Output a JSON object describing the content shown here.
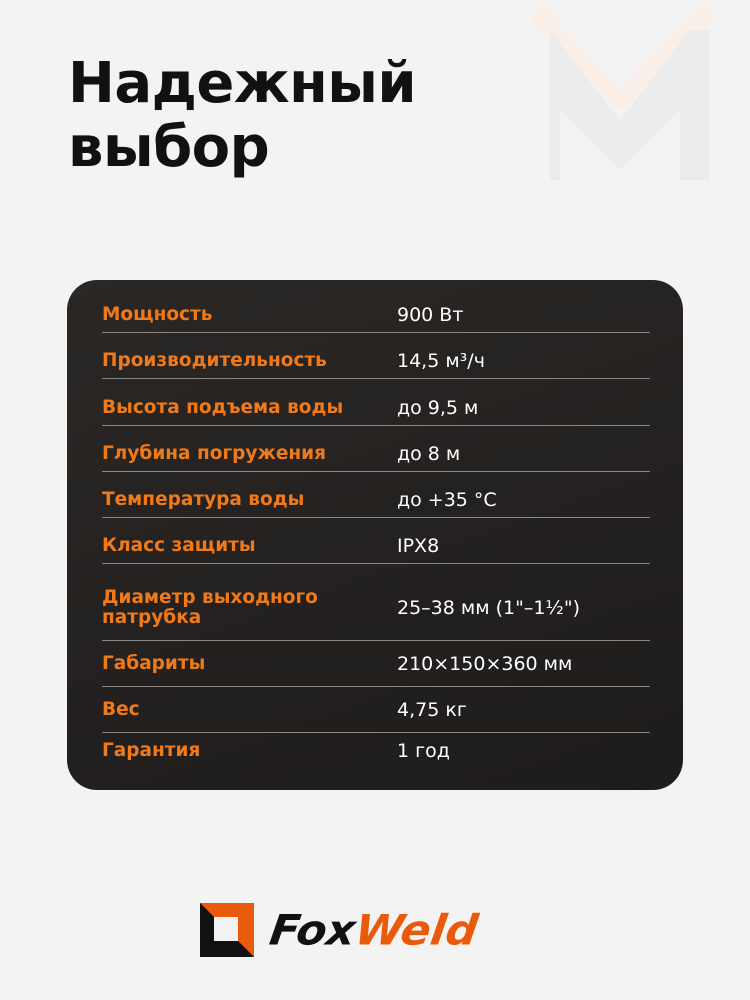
{
  "title": {
    "line1": "Надежный",
    "line2": "выбор"
  },
  "specs": [
    {
      "label": "Мощность",
      "value": "900 Вт"
    },
    {
      "label": "Производительность",
      "value": "14,5 м³/ч"
    },
    {
      "label": "Высота подъема воды",
      "value": "до 9,5 м"
    },
    {
      "label": "Глубина погружения",
      "value": "до 8 м"
    },
    {
      "label": "Температура воды",
      "value": "до +35 °С"
    },
    {
      "label": "Класс защиты",
      "value": "IPX8"
    },
    {
      "label": "Диаметр выходного патрубка",
      "value": "25–38 мм (1\"–1½\")"
    },
    {
      "label": "Габариты",
      "value": "210×150×360 мм"
    },
    {
      "label": "Вес",
      "value": "4,75 кг"
    },
    {
      "label": "Гарантия",
      "value": "1 год"
    }
  ],
  "logo": {
    "part1": "Fox",
    "part2": "Weld"
  },
  "colors": {
    "accent": "#f07a1a",
    "brand_orange": "#ea5a0c",
    "card": "#232120",
    "background": "#f3f3f3"
  }
}
